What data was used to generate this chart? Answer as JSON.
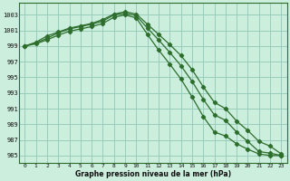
{
  "xlabel": "Graphe pression niveau de la mer (hPa)",
  "background_color": "#cceedd",
  "grid_color": "#99ccbb",
  "line_color": "#2d6e2d",
  "x_ticks": [
    0,
    1,
    2,
    3,
    4,
    5,
    6,
    7,
    8,
    9,
    10,
    11,
    12,
    13,
    14,
    15,
    16,
    17,
    18,
    19,
    20,
    21,
    22,
    23
  ],
  "y_ticks": [
    985,
    987,
    989,
    991,
    993,
    995,
    997,
    999,
    1001,
    1003
  ],
  "ylim": [
    984.0,
    1004.5
  ],
  "xlim": [
    -0.5,
    23.5
  ],
  "series": [
    [
      999.0,
      999.5,
      1000.3,
      1000.8,
      1001.3,
      1001.6,
      1001.9,
      1002.4,
      1003.1,
      1003.4,
      1003.1,
      1001.8,
      1000.5,
      999.2,
      997.8,
      996.0,
      993.8,
      991.8,
      991.0,
      989.4,
      988.2,
      986.8,
      986.2,
      985.2
    ],
    [
      999.0,
      999.4,
      1000.0,
      1000.7,
      1001.2,
      1001.5,
      1001.8,
      1002.2,
      1003.0,
      1003.2,
      1002.9,
      1001.3,
      999.8,
      998.2,
      996.5,
      994.5,
      992.2,
      990.2,
      989.5,
      988.0,
      986.8,
      985.5,
      985.3,
      985.0
    ],
    [
      999.0,
      999.3,
      999.8,
      1000.4,
      1000.9,
      1001.2,
      1001.5,
      1001.9,
      1002.7,
      1003.0,
      1002.6,
      1000.5,
      998.5,
      996.7,
      994.8,
      992.5,
      990.0,
      988.0,
      987.5,
      986.5,
      985.8,
      985.2,
      985.0,
      985.0
    ]
  ]
}
